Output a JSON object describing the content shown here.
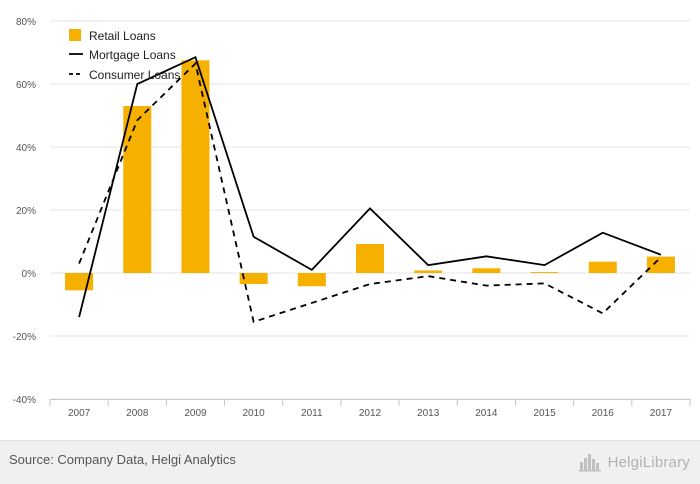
{
  "chart_data": {
    "type": "bar",
    "title": "",
    "xlabel": "",
    "ylabel": "",
    "categories": [
      "2007",
      "2008",
      "2009",
      "2010",
      "2011",
      "2012",
      "2013",
      "2014",
      "2015",
      "2016",
      "2017"
    ],
    "yticks": [
      "80%",
      "60%",
      "40%",
      "20%",
      "0%",
      "-20%",
      "-40%"
    ],
    "ylim": [
      -40,
      80
    ],
    "grid": true,
    "legend_position": "top-left",
    "series": [
      {
        "name": "Retail Loans",
        "kind": "bar",
        "color": "#f5b000",
        "values": [
          -5.5,
          53,
          67.5,
          -3.5,
          -4.2,
          9.2,
          0.8,
          1.5,
          0.3,
          3.6,
          5.2
        ]
      },
      {
        "name": "Mortgage Loans",
        "kind": "line",
        "style": "solid",
        "color": "#000000",
        "values": [
          -14,
          60,
          68.5,
          11.5,
          1,
          20.5,
          2.5,
          5.3,
          2.5,
          12.8,
          5.8
        ]
      },
      {
        "name": "Consumer Loans",
        "kind": "line",
        "style": "dashed",
        "color": "#000000",
        "values": [
          3,
          48.5,
          66.5,
          -15.5,
          -9.5,
          -3.5,
          -1,
          -4,
          -3.3,
          -12.8,
          5
        ]
      }
    ]
  },
  "footer": {
    "source": "Source: Company Data, Helgi Analytics",
    "brand": "HelgiLibrary",
    "brand_icon": "helgi-library-logo"
  }
}
